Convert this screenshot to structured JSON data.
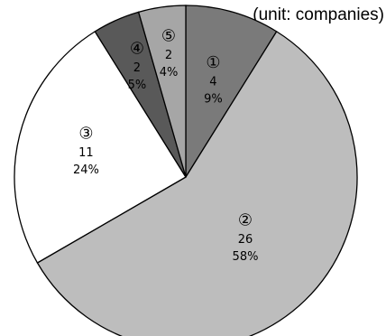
{
  "unit_note": "(unit: companies)",
  "chart_data": {
    "type": "pie",
    "title": "",
    "start_angle_deg": 0,
    "direction": "clockwise",
    "slices": [
      {
        "label": "①",
        "value": 4,
        "percent": "9%",
        "color": "#7a7a7a"
      },
      {
        "label": "②",
        "value": 26,
        "percent": "58%",
        "color": "#bdbdbd"
      },
      {
        "label": "③",
        "value": 11,
        "percent": "24%",
        "color": "#ffffff"
      },
      {
        "label": "④",
        "value": 2,
        "percent": "5%",
        "color": "#595959"
      },
      {
        "label": "⑤",
        "value": 2,
        "percent": "4%",
        "color": "#a6a6a6"
      }
    ]
  }
}
